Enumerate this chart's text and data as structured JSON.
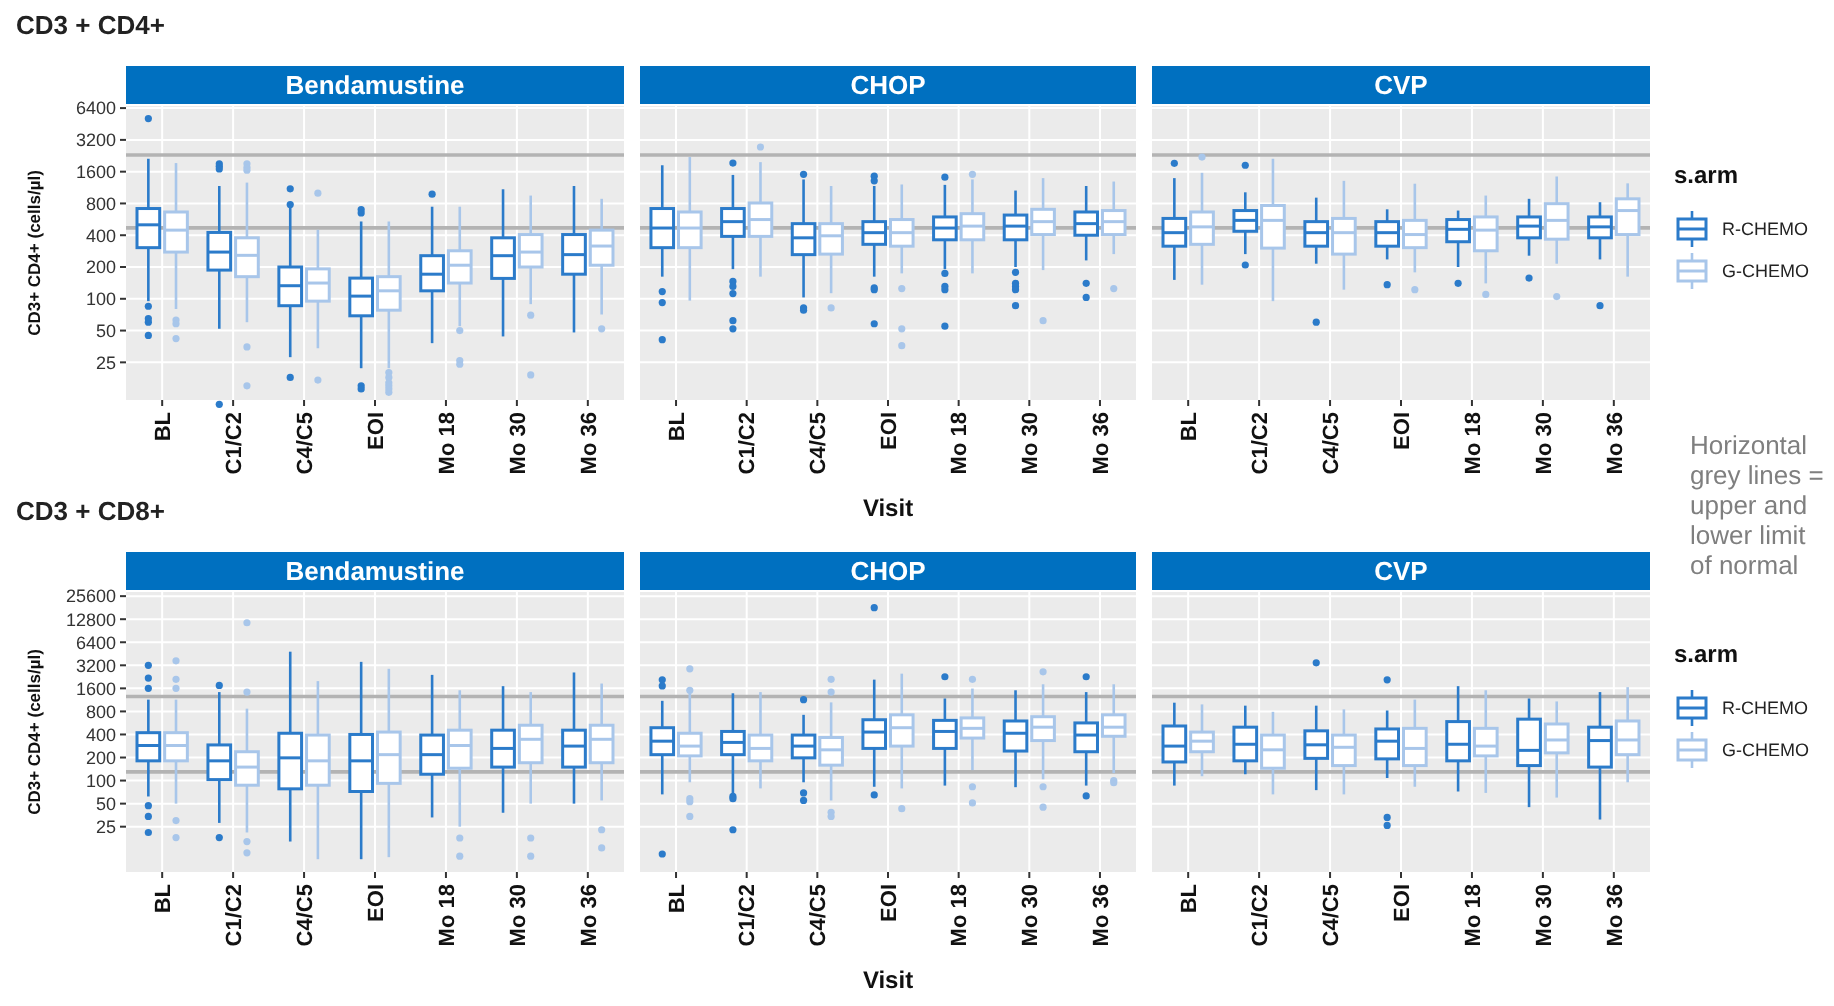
{
  "chart_data": [
    {
      "type": "box",
      "title": "Bendamustine",
      "annotations": [
        "CD3 + CD4+"
      ],
      "ylabel": "CD3+ CD4+ (cells/µl)",
      "categories": [
        "BL",
        "C1/C2",
        "C4/C5",
        "EOI",
        "Mo 18",
        "Mo 30",
        "Mo 36"
      ],
      "log": "y",
      "grid": true,
      "ylim": [
        11,
        6700
      ],
      "yticks": [
        25,
        50,
        100,
        200,
        400,
        800,
        1600,
        3200,
        6400
      ],
      "ref_lines": [
        {
          "axis": "y",
          "value": 470,
          "color": "#b3b3b3"
        },
        {
          "axis": "y",
          "value": 2300,
          "color": "#b3b3b3"
        }
      ],
      "series": [
        {
          "color": "#2b7bca",
          "boxes": [
            {
              "low": 95,
              "q1": 305,
              "median": 502,
              "q3": 716,
              "high": 2120,
              "outliers": [
                5090,
                85,
                65,
                60,
                45
              ]
            },
            {
              "low": 52,
              "q1": 187,
              "median": 277,
              "q3": 425,
              "high": 1170,
              "outliers": [
                1900,
                1800,
                1700,
                10
              ]
            },
            {
              "low": 28,
              "q1": 86,
              "median": 133,
              "q3": 200,
              "high": 745,
              "outliers": [
                1100,
                780,
                18
              ]
            },
            {
              "low": 22,
              "q1": 69,
              "median": 106,
              "q3": 157,
              "high": 540,
              "outliers": [
                700,
                650,
                15,
                14
              ]
            },
            {
              "low": 38,
              "q1": 119,
              "median": 171,
              "q3": 256,
              "high": 745,
              "outliers": [
                980
              ]
            },
            {
              "low": 44,
              "q1": 156,
              "median": 256,
              "q3": 378,
              "high": 1090
            },
            {
              "low": 48,
              "q1": 171,
              "median": 262,
              "q3": 406,
              "high": 1170
            }
          ]
        },
        {
          "color": "#a8c6ea",
          "boxes": [
            {
              "low": 80,
              "q1": 277,
              "median": 447,
              "q3": 664,
              "high": 1930,
              "outliers": [
                63,
                58,
                42
              ]
            },
            {
              "low": 60,
              "q1": 162,
              "median": 258,
              "q3": 378,
              "high": 1260,
              "outliers": [
                1900,
                1750,
                1650,
                35,
                15
              ]
            },
            {
              "low": 34,
              "q1": 95,
              "median": 141,
              "q3": 192,
              "high": 450,
              "outliers": [
                1000,
                17
              ]
            },
            {
              "low": 22,
              "q1": 78,
              "median": 119,
              "q3": 162,
              "high": 540,
              "outliers": [
                20,
                18,
                16,
                15,
                14,
                13
              ]
            },
            {
              "low": 55,
              "q1": 141,
              "median": 208,
              "q3": 285,
              "high": 745,
              "outliers": [
                50,
                26,
                24
              ]
            },
            {
              "low": 89,
              "q1": 200,
              "median": 277,
              "q3": 406,
              "high": 950,
              "outliers": [
                70,
                19
              ]
            },
            {
              "low": 71,
              "q1": 208,
              "median": 316,
              "q3": 447,
              "high": 885,
              "outliers": [
                52
              ]
            }
          ]
        }
      ]
    },
    {
      "type": "box",
      "title": "CHOP",
      "xlabel": "Visit",
      "categories": [
        "BL",
        "C1/C2",
        "C4/C5",
        "EOI",
        "Mo 18",
        "Mo 30",
        "Mo 36"
      ],
      "log": "y",
      "grid": true,
      "tick_labels": "x",
      "ylim": [
        11,
        6700
      ],
      "yticks": [
        25,
        50,
        100,
        200,
        400,
        800,
        1600,
        3200,
        6400
      ],
      "ref_lines": [
        {
          "axis": "y",
          "value": 470,
          "color": "#b3b3b3"
        },
        {
          "axis": "y",
          "value": 2300,
          "color": "#b3b3b3"
        }
      ],
      "series": [
        {
          "color": "#2b7bca",
          "boxes": [
            {
              "low": 162,
              "q1": 305,
              "median": 468,
              "q3": 716,
              "high": 1840,
              "outliers": [
                117,
                92,
                41
              ]
            },
            {
              "low": 191,
              "q1": 390,
              "median": 538,
              "q3": 716,
              "high": 1490,
              "outliers": [
                1930,
                146,
                131,
                112,
                62,
                52
              ]
            },
            {
              "low": 103,
              "q1": 262,
              "median": 378,
              "q3": 515,
              "high": 1350,
              "outliers": [
                1510,
                82,
                78
              ]
            },
            {
              "low": 162,
              "q1": 328,
              "median": 423,
              "q3": 538,
              "high": 1170,
              "outliers": [
                1450,
                1310,
                127,
                122,
                58
              ]
            },
            {
              "low": 191,
              "q1": 362,
              "median": 468,
              "q3": 596,
              "high": 1200,
              "outliers": [
                1420,
                174,
                131,
                122,
                55
              ]
            },
            {
              "low": 200,
              "q1": 362,
              "median": 488,
              "q3": 621,
              "high": 1060,
              "outliers": [
                178,
                140,
                131,
                122,
                86
              ]
            },
            {
              "low": 231,
              "q1": 400,
              "median": 515,
              "q3": 664,
              "high": 1170,
              "outliers": [
                140,
                103
              ]
            }
          ]
        },
        {
          "color": "#a8c6ea",
          "boxes": [
            {
              "low": 96,
              "q1": 305,
              "median": 468,
              "q3": 664,
              "high": 2200
            },
            {
              "low": 162,
              "q1": 390,
              "median": 563,
              "q3": 808,
              "high": 1970,
              "outliers": [
                2740
              ]
            },
            {
              "low": 113,
              "q1": 265,
              "median": 395,
              "q3": 515,
              "high": 1170,
              "outliers": [
                82
              ]
            },
            {
              "low": 174,
              "q1": 315,
              "median": 423,
              "q3": 563,
              "high": 1210,
              "outliers": [
                125,
                52,
                36
              ]
            },
            {
              "low": 174,
              "q1": 362,
              "median": 488,
              "q3": 640,
              "high": 1350,
              "outliers": [
                1510
              ]
            },
            {
              "low": 187,
              "q1": 406,
              "median": 538,
              "q3": 704,
              "high": 1390,
              "outliers": [
                62
              ]
            },
            {
              "low": 265,
              "q1": 406,
              "median": 538,
              "q3": 685,
              "high": 1290,
              "outliers": [
                125
              ]
            }
          ]
        }
      ]
    },
    {
      "type": "box",
      "title": "CVP",
      "annotations": [
        "Horizontal grey lines = upper and lower limit of normal"
      ],
      "legend_title": "s.arm",
      "legend": "right",
      "categories": [
        "BL",
        "C1/C2",
        "C4/C5",
        "EOI",
        "Mo 18",
        "Mo 30",
        "Mo 36"
      ],
      "log": "y",
      "grid": true,
      "tick_labels": "x",
      "ylim": [
        11,
        6700
      ],
      "yticks": [
        25,
        50,
        100,
        200,
        400,
        800,
        1600,
        3200,
        6400
      ],
      "ref_lines": [
        {
          "axis": "y",
          "value": 470,
          "color": "#b3b3b3"
        },
        {
          "axis": "y",
          "value": 2300,
          "color": "#b3b3b3"
        }
      ],
      "series": [
        {
          "name": "R-CHEMO",
          "color": "#2b7bca",
          "boxes": [
            {
              "low": 151,
              "q1": 315,
              "median": 423,
              "q3": 577,
              "high": 1390,
              "outliers": [
                1920
              ]
            },
            {
              "low": 265,
              "q1": 436,
              "median": 553,
              "q3": 685,
              "high": 1020,
              "outliers": [
                1840,
                209
              ]
            },
            {
              "low": 215,
              "q1": 315,
              "median": 423,
              "q3": 538,
              "high": 908,
              "outliers": [
                60
              ]
            },
            {
              "low": 236,
              "q1": 315,
              "median": 423,
              "q3": 538,
              "high": 704,
              "outliers": [
                136
              ]
            },
            {
              "low": 200,
              "q1": 347,
              "median": 455,
              "q3": 563,
              "high": 685,
              "outliers": [
                140
              ]
            },
            {
              "low": 256,
              "q1": 378,
              "median": 488,
              "q3": 596,
              "high": 885,
              "outliers": [
                157
              ]
            },
            {
              "low": 236,
              "q1": 378,
              "median": 480,
              "q3": 596,
              "high": 822,
              "outliers": [
                86
              ]
            }
          ]
        },
        {
          "name": "G-CHEMO",
          "color": "#a8c6ea",
          "boxes": [
            {
              "low": 136,
              "q1": 328,
              "median": 480,
              "q3": 664,
              "high": 1560,
              "outliers": [
                2200
              ]
            },
            {
              "low": 95,
              "q1": 302,
              "median": 553,
              "q3": 765,
              "high": 2120
            },
            {
              "low": 122,
              "q1": 265,
              "median": 423,
              "q3": 577,
              "high": 1310
            },
            {
              "low": 178,
              "q1": 305,
              "median": 406,
              "q3": 553,
              "high": 1230,
              "outliers": [
                122
              ]
            },
            {
              "low": 140,
              "q1": 285,
              "median": 447,
              "q3": 596,
              "high": 950,
              "outliers": [
                110
              ]
            },
            {
              "low": 215,
              "q1": 367,
              "median": 553,
              "q3": 796,
              "high": 1440,
              "outliers": [
                105
              ]
            },
            {
              "low": 162,
              "q1": 406,
              "median": 685,
              "q3": 885,
              "high": 1240
            }
          ]
        }
      ]
    },
    {
      "type": "box",
      "title": "Bendamustine",
      "annotations": [
        "CD3 + CD8+"
      ],
      "ylabel": "CD3+ CD4+ (cells/µl)",
      "categories": [
        "BL",
        "C1/C2",
        "C4/C5",
        "EOI",
        "Mo 18",
        "Mo 30",
        "Mo 36"
      ],
      "log": "y",
      "grid": true,
      "ylim": [
        6.4,
        29000
      ],
      "yticks": [
        25,
        50,
        100,
        200,
        400,
        800,
        1600,
        3200,
        6400,
        12800,
        25600
      ],
      "ref_lines": [
        {
          "axis": "y",
          "value": 130,
          "color": "#b3b3b3"
        },
        {
          "axis": "y",
          "value": 1250,
          "color": "#b3b3b3"
        }
      ],
      "series": [
        {
          "color": "#2b7bca",
          "boxes": [
            {
              "low": 62,
              "q1": 181,
              "median": 287,
              "q3": 422,
              "high": 1140,
              "outliers": [
                3200,
                2180,
                1600,
                47,
                34,
                21
              ]
            },
            {
              "low": 28,
              "q1": 103,
              "median": 181,
              "q3": 292,
              "high": 1430,
              "outliers": [
                1750,
                18
              ]
            },
            {
              "low": 16,
              "q1": 78,
              "median": 198,
              "q3": 415,
              "high": 4820
            },
            {
              "low": 9.4,
              "q1": 72,
              "median": 181,
              "q3": 400,
              "high": 3550
            },
            {
              "low": 33,
              "q1": 121,
              "median": 218,
              "q3": 393,
              "high": 2400
            },
            {
              "low": 38,
              "q1": 150,
              "median": 263,
              "q3": 455,
              "high": 1710
            },
            {
              "low": 50,
              "q1": 150,
              "median": 282,
              "q3": 455,
              "high": 2580
            }
          ]
        },
        {
          "color": "#a8c6ea",
          "boxes": [
            {
              "low": 50,
              "q1": 181,
              "median": 287,
              "q3": 422,
              "high": 1140,
              "outliers": [
                3660,
                2100,
                1600,
                30,
                18
              ]
            },
            {
              "low": 21,
              "q1": 87,
              "median": 150,
              "q3": 238,
              "high": 869,
              "outliers": [
                11500,
                1430,
                16,
                11.4
              ]
            },
            {
              "low": 9.4,
              "q1": 87,
              "median": 181,
              "q3": 393,
              "high": 1990
            },
            {
              "low": 10,
              "q1": 92,
              "median": 218,
              "q3": 430,
              "high": 2880
            },
            {
              "low": 25,
              "q1": 145,
              "median": 287,
              "q3": 455,
              "high": 1510,
              "outliers": [
                17.8,
                10.3
              ]
            },
            {
              "low": 50,
              "q1": 171,
              "median": 346,
              "q3": 528,
              "high": 1430,
              "outliers": [
                17.8,
                10.3
              ]
            },
            {
              "low": 55,
              "q1": 171,
              "median": 346,
              "q3": 528,
              "high": 1850,
              "outliers": [
                22.8,
                13.2
              ]
            }
          ]
        }
      ]
    },
    {
      "type": "box",
      "title": "CHOP",
      "xlabel": "Visit",
      "categories": [
        "BL",
        "C1/C2",
        "C4/C5",
        "EOI",
        "Mo 18",
        "Mo 30",
        "Mo 36"
      ],
      "log": "y",
      "grid": true,
      "tick_labels": "x",
      "ylim": [
        6.4,
        29000
      ],
      "yticks": [
        25,
        50,
        100,
        200,
        400,
        800,
        1600,
        3200,
        6400,
        12800,
        25600
      ],
      "ref_lines": [
        {
          "axis": "y",
          "value": 130,
          "color": "#b3b3b3"
        },
        {
          "axis": "y",
          "value": 1250,
          "color": "#b3b3b3"
        }
      ],
      "series": [
        {
          "color": "#2b7bca",
          "boxes": [
            {
              "low": 66,
              "q1": 218,
              "median": 327,
              "q3": 490,
              "high": 1100,
              "outliers": [
                2070,
                1720,
                11
              ]
            },
            {
              "low": 66,
              "q1": 218,
              "median": 315,
              "q3": 438,
              "high": 1380,
              "outliers": [
                62,
                58,
                22.8
              ]
            },
            {
              "low": 95,
              "q1": 198,
              "median": 282,
              "q3": 393,
              "high": 722,
              "outliers": [
                1140,
                69,
                55
              ]
            },
            {
              "low": 83,
              "q1": 263,
              "median": 430,
              "q3": 623,
              "high": 2080,
              "outliers": [
                18100,
                65
              ]
            },
            {
              "low": 86,
              "q1": 263,
              "median": 438,
              "q3": 611,
              "high": 1180,
              "outliers": [
                2270
              ]
            },
            {
              "low": 82,
              "q1": 243,
              "median": 415,
              "q3": 600,
              "high": 1510
            },
            {
              "low": 86,
              "q1": 238,
              "median": 393,
              "q3": 566,
              "high": 1430,
              "outliers": [
                2270,
                63
              ]
            }
          ]
        },
        {
          "color": "#a8c6ea",
          "boxes": [
            {
              "low": 95,
              "q1": 210,
              "median": 282,
              "q3": 415,
              "high": 1380,
              "outliers": [
                2880,
                1510,
                58,
                53,
                34
              ]
            },
            {
              "low": 79,
              "q1": 181,
              "median": 263,
              "q3": 393,
              "high": 1430
            },
            {
              "low": 55,
              "q1": 159,
              "median": 252,
              "q3": 365,
              "high": 1050,
              "outliers": [
                2100,
                1430,
                38.6,
                34
              ]
            },
            {
              "low": 79,
              "q1": 282,
              "median": 490,
              "q3": 722,
              "high": 2490,
              "outliers": [
                43
              ]
            },
            {
              "low": 137,
              "q1": 359,
              "median": 481,
              "q3": 658,
              "high": 1590,
              "outliers": [
                2100,
                83,
                51
              ]
            },
            {
              "low": 104,
              "q1": 333,
              "median": 498,
              "q3": 682,
              "high": 1810,
              "outliers": [
                2630,
                83,
                45
              ]
            },
            {
              "low": 125,
              "q1": 379,
              "median": 498,
              "q3": 722,
              "high": 1810,
              "outliers": [
                100,
                94
              ]
            }
          ]
        }
      ]
    },
    {
      "type": "box",
      "title": "CVP",
      "legend_title": "s.arm",
      "legend": "right",
      "categories": [
        "BL",
        "C1/C2",
        "C4/C5",
        "EOI",
        "Mo 18",
        "Mo 30",
        "Mo 36"
      ],
      "log": "y",
      "grid": true,
      "tick_labels": "x",
      "ylim": [
        6.4,
        29000
      ],
      "yticks": [
        25,
        50,
        100,
        200,
        400,
        800,
        1600,
        3200,
        6400,
        12800,
        25600
      ],
      "ref_lines": [
        {
          "axis": "y",
          "value": 130,
          "color": "#b3b3b3"
        },
        {
          "axis": "y",
          "value": 1250,
          "color": "#b3b3b3"
        }
      ],
      "series": [
        {
          "name": "R-CHEMO",
          "color": "#2b7bca",
          "boxes": [
            {
              "low": 86,
              "q1": 175,
              "median": 282,
              "q3": 516,
              "high": 1040
            },
            {
              "low": 121,
              "q1": 181,
              "median": 298,
              "q3": 498,
              "high": 951
            },
            {
              "low": 75,
              "q1": 195,
              "median": 293,
              "q3": 446,
              "high": 951,
              "outliers": [
                3450
              ]
            },
            {
              "low": 108,
              "q1": 192,
              "median": 327,
              "q3": 472,
              "high": 822,
              "outliers": [
                2070,
                33,
                26
              ]
            },
            {
              "low": 72,
              "q1": 181,
              "median": 298,
              "q3": 589,
              "high": 1710
            },
            {
              "low": 45,
              "q1": 157,
              "median": 248,
              "q3": 634,
              "high": 1180
            },
            {
              "low": 31,
              "q1": 150,
              "median": 333,
              "q3": 498,
              "high": 1430
            }
          ]
        },
        {
          "name": "G-CHEMO",
          "color": "#a8c6ea",
          "boxes": [
            {
              "low": 114,
              "q1": 238,
              "median": 327,
              "q3": 430,
              "high": 988
            },
            {
              "low": 66,
              "q1": 145,
              "median": 252,
              "q3": 393,
              "high": 790
            },
            {
              "low": 66,
              "q1": 157,
              "median": 272,
              "q3": 393,
              "high": 852
            },
            {
              "low": 83,
              "q1": 157,
              "median": 263,
              "q3": 481,
              "high": 1140
            },
            {
              "low": 69,
              "q1": 210,
              "median": 282,
              "q3": 481,
              "high": 1510
            },
            {
              "low": 60,
              "q1": 230,
              "median": 339,
              "q3": 548,
              "high": 1080
            },
            {
              "low": 95,
              "q1": 218,
              "median": 339,
              "q3": 600,
              "high": 1660
            }
          ]
        }
      ]
    }
  ]
}
